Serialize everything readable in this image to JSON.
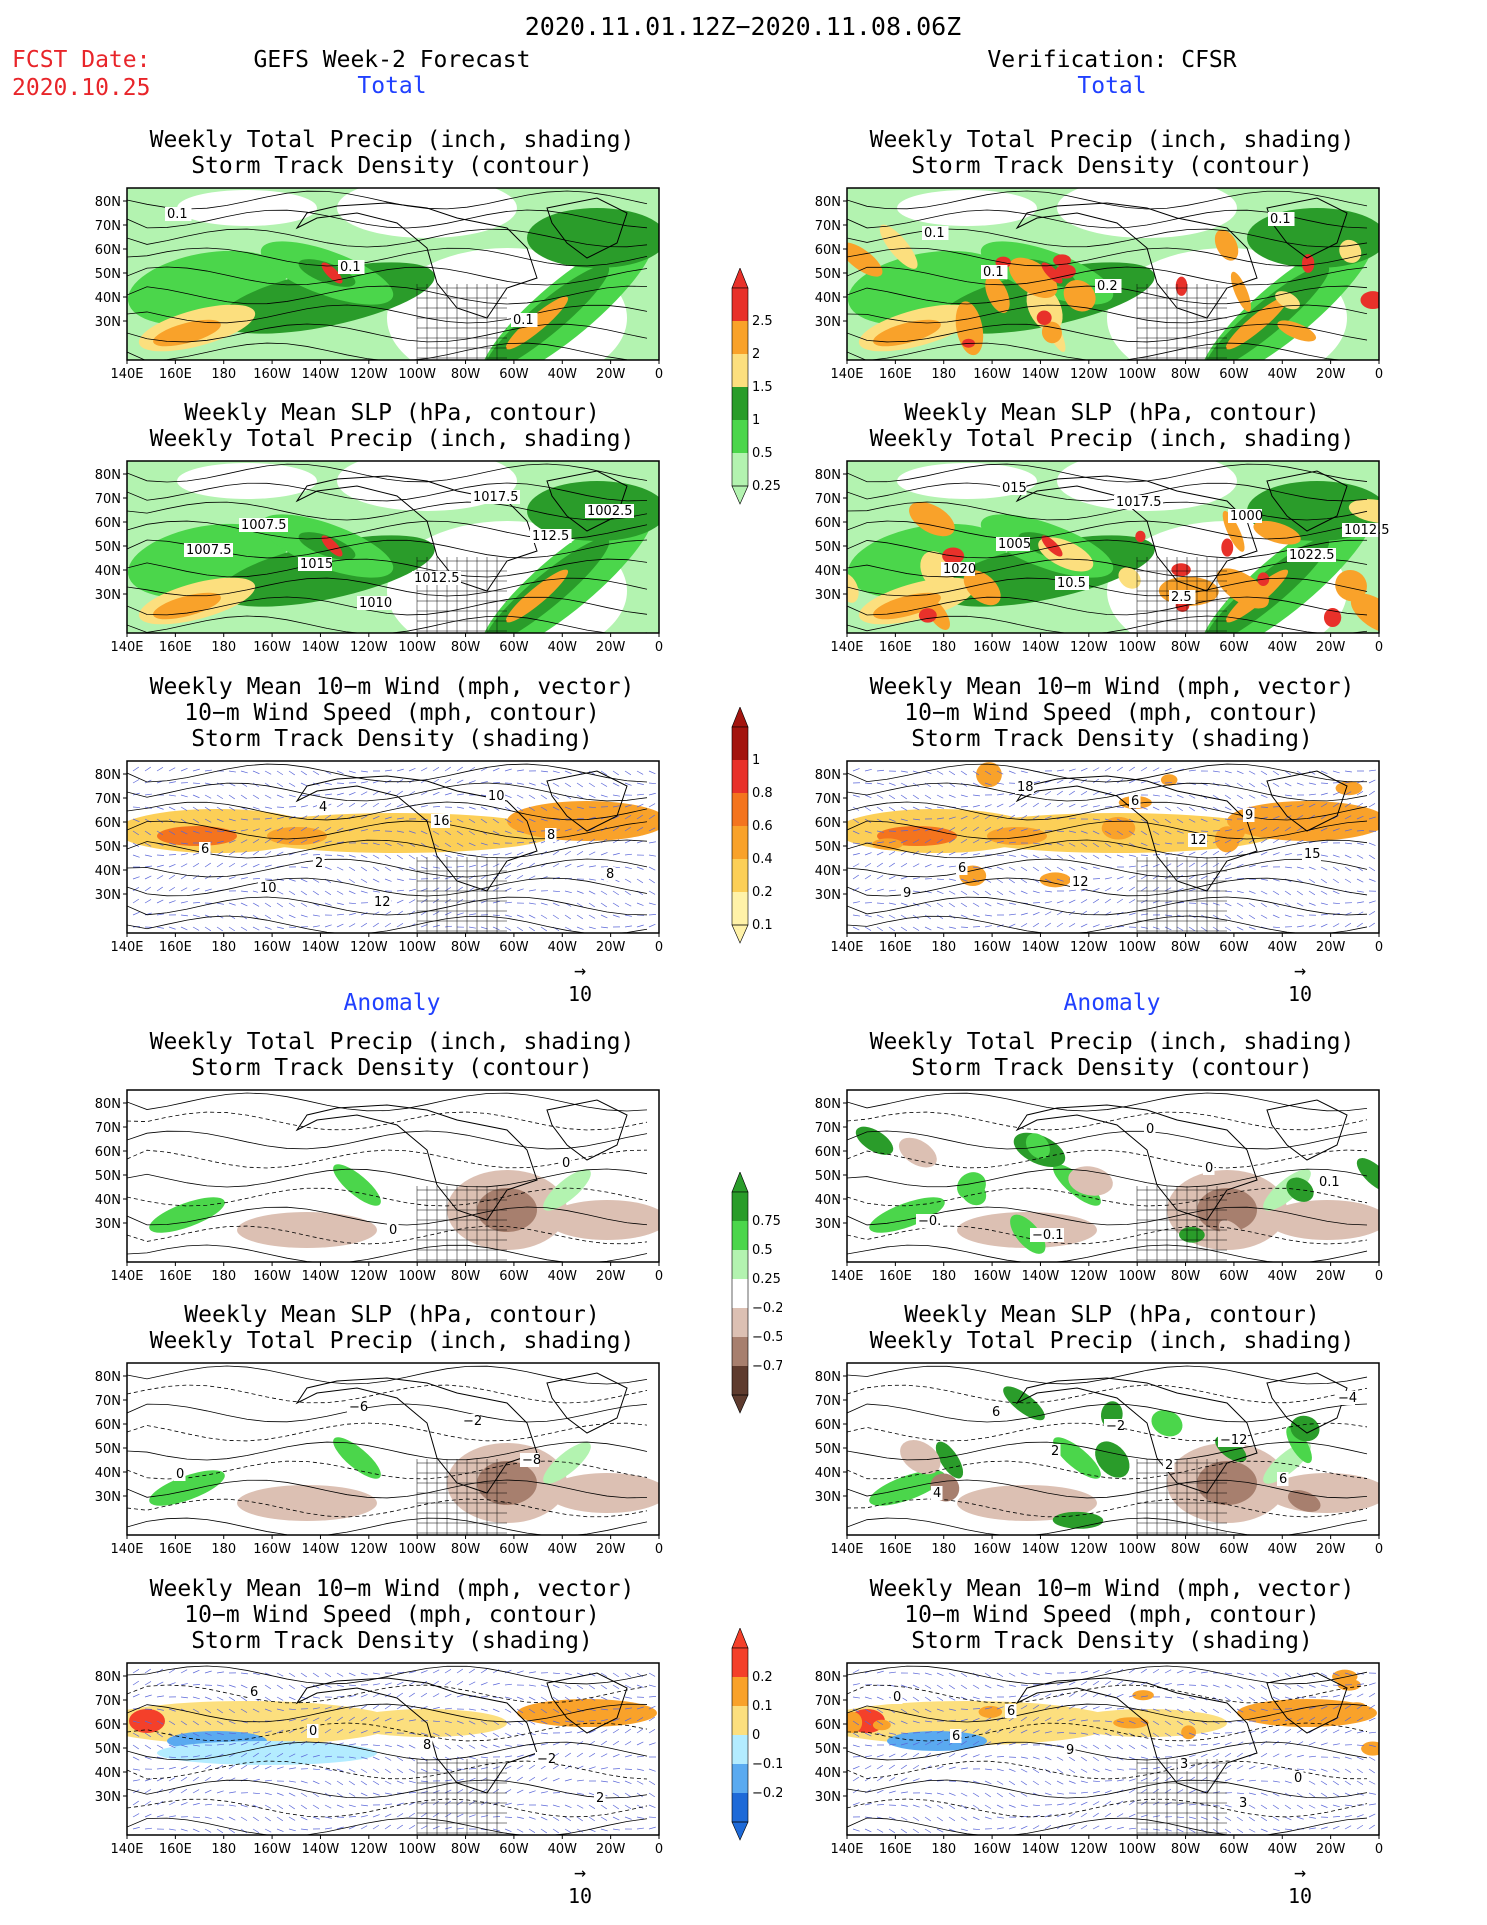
{
  "header": {
    "title": "2020.11.01.12Z−2020.11.08.06Z",
    "fcst_label": "FCST Date:",
    "fcst_date": "2020.10.25",
    "left_title": "GEFS Week-2 Forecast",
    "right_title": "Verification: CFSR"
  },
  "sections": {
    "total": "Total",
    "anomaly": "Anomaly"
  },
  "panel_titles": {
    "precip_storm": [
      "Weekly Total Precip (inch, shading)",
      "Storm Track Density (contour)"
    ],
    "slp_precip": [
      "Weekly Mean SLP (hPa, contour)",
      "Weekly Total Precip (inch, shading)"
    ],
    "wind": [
      "Weekly Mean 10−m Wind (mph, vector)",
      "10−m Wind Speed (mph, contour)",
      "Storm Track Density (shading)"
    ]
  },
  "axes": {
    "lat_labels": [
      "80N",
      "70N",
      "60N",
      "50N",
      "40N",
      "30N"
    ],
    "lon_labels": [
      "140E",
      "160E",
      "180",
      "160W",
      "140W",
      "120W",
      "100W",
      "80W",
      "60W",
      "40W",
      "20W",
      "0"
    ]
  },
  "vector_ref": "10",
  "colorbars": {
    "precip_total": {
      "labels": [
        "2.5",
        "2",
        "1.5",
        "1",
        "0.5",
        "0.25"
      ],
      "colors": [
        "#e8312a",
        "#f9a22a",
        "#fcdf7e",
        "#2a9c2a",
        "#4bd64b",
        "#b3f3b0"
      ]
    },
    "storm_total": {
      "labels": [
        "1",
        "0.8",
        "0.6",
        "0.4",
        "0.2",
        "0.1"
      ],
      "colors": [
        "#a3150f",
        "#e8312a",
        "#f4741e",
        "#f9a22a",
        "#fccf57",
        "#fff2a8"
      ]
    },
    "precip_anom": {
      "labels": [
        "0.75",
        "0.5",
        "0.25",
        "−0.25",
        "−0.5",
        "−0.75"
      ],
      "colors": [
        "#2a9c2a",
        "#4bd64b",
        "#b3f3b0",
        "#ffffff",
        "#dcc0b3",
        "#a77f6e",
        "#5e3b2e"
      ]
    },
    "storm_anom": {
      "labels": [
        "0.2",
        "0.1",
        "0",
        "−0.1",
        "−0.2"
      ],
      "colors": [
        "#f4402a",
        "#f9a22a",
        "#fcdf7e",
        "#b3ecff",
        "#5aaaf0",
        "#1e6ad8"
      ]
    }
  },
  "contour_labels": {
    "p1": [
      "0.1",
      "0.1",
      "0.1"
    ],
    "p2": [
      "0.1",
      "0.2",
      "0.1",
      "0.1"
    ],
    "p3": [
      "1007.5",
      "1012.5",
      "1002.5",
      "1015",
      "1017.5",
      "1007.5",
      "1010",
      "112.5"
    ],
    "p4": [
      "1005",
      "2.5",
      "1012.5",
      "10.5",
      "1000",
      "1020",
      "1017.5",
      "1022.5",
      "015"
    ],
    "p5": [
      "2",
      "10",
      "6",
      "12",
      "8",
      "10",
      "16",
      "8",
      "4"
    ],
    "p6": [
      "12",
      "9",
      "6",
      "6",
      "15",
      "18",
      "12",
      "9"
    ],
    "p7": [
      "0",
      "0"
    ],
    "p8": [
      "0",
      "0.1",
      "−0.1",
      "0",
      "−0."
    ],
    "p9": [
      "−2",
      "0",
      "−6",
      "−8"
    ],
    "p10": [
      "−12",
      "4",
      "−2",
      "6",
      "6",
      "2",
      "−4",
      "2"
    ],
    "p11": [
      "−2",
      "6",
      "8",
      "2",
      "0"
    ],
    "p12": [
      "0",
      "6",
      "3",
      "0",
      "9",
      "3",
      "6"
    ]
  }
}
